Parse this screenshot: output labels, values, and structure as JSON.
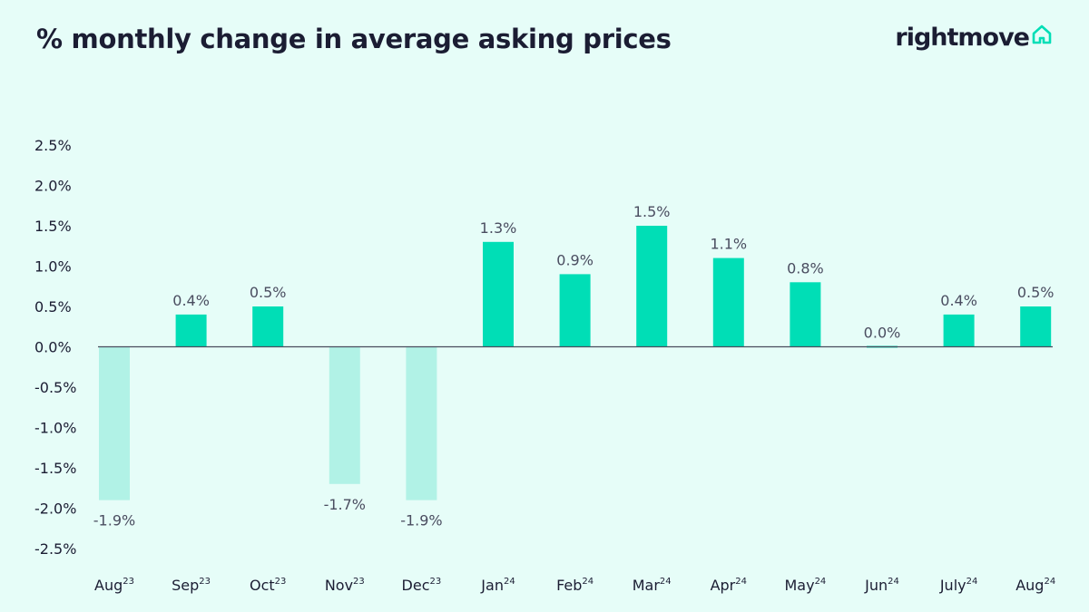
{
  "title": "% monthly change in average asking prices",
  "brand": {
    "name": "rightmove",
    "icon": "house-icon",
    "accent": "#00deb6"
  },
  "chart_data": {
    "type": "bar",
    "title": "% monthly change in average asking prices",
    "categories": [
      {
        "month": "Aug",
        "year": "23"
      },
      {
        "month": "Sep",
        "year": "23"
      },
      {
        "month": "Oct",
        "year": "23"
      },
      {
        "month": "Nov",
        "year": "23"
      },
      {
        "month": "Dec",
        "year": "23"
      },
      {
        "month": "Jan",
        "year": "24"
      },
      {
        "month": "Feb",
        "year": "24"
      },
      {
        "month": "Mar",
        "year": "24"
      },
      {
        "month": "Apr",
        "year": "24"
      },
      {
        "month": "May",
        "year": "24"
      },
      {
        "month": "Jun",
        "year": "24"
      },
      {
        "month": "July",
        "year": "24"
      },
      {
        "month": "Aug",
        "year": "24"
      }
    ],
    "values": [
      -1.9,
      0.4,
      0.5,
      -1.7,
      -1.9,
      1.3,
      0.9,
      1.5,
      1.1,
      0.8,
      0.0,
      0.4,
      0.5
    ],
    "data_labels": [
      "-1.9%",
      "0.4%",
      "0.5%",
      "-1.7%",
      "-1.9%",
      "1.3%",
      "0.9%",
      "1.5%",
      "1.1%",
      "0.8%",
      "0.0%",
      "0.4%",
      "0.5%"
    ],
    "yticks": [
      2.5,
      2.0,
      1.5,
      1.0,
      0.5,
      0.0,
      -0.5,
      -1.0,
      -1.5,
      -2.0,
      -2.5
    ],
    "ytick_labels": [
      "2.5%",
      "2.0%",
      "1.5%",
      "1.0%",
      "0.5%",
      "0.0%",
      "-0.5%",
      "-1.0%",
      "-1.5%",
      "-2.0%",
      "-2.5%"
    ],
    "ylim": [
      -2.5,
      2.5
    ],
    "grid": false,
    "legend": "none",
    "colors": {
      "positive": "#00deb6",
      "negative": "#b1f2e6",
      "zero_line": "#4a4d5e"
    }
  }
}
